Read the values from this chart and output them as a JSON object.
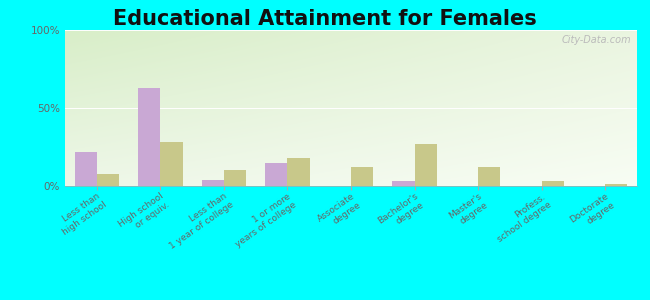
{
  "title": "Educational Attainment for Females",
  "categories": [
    "Less than\nhigh school",
    "High school\nor equiv.",
    "Less than\n1 year of college",
    "1 or more\nyears of college",
    "Associate\ndegree",
    "Bachelor's\ndegree",
    "Master's\ndegree",
    "Profess.\nschool degree",
    "Doctorate\ndegree"
  ],
  "akiak_values": [
    22,
    63,
    4,
    15,
    0,
    3,
    0,
    0,
    0
  ],
  "alaska_values": [
    8,
    28,
    10,
    18,
    12,
    27,
    12,
    3,
    1
  ],
  "akiak_color": "#c9a8d4",
  "alaska_color": "#c8c88a",
  "ylim": [
    0,
    100
  ],
  "yticks": [
    0,
    50,
    100
  ],
  "ytick_labels": [
    "0%",
    "50%",
    "100%"
  ],
  "bar_width": 0.35,
  "figure_bg": "#00ffff",
  "watermark": "City-Data.com",
  "title_fontsize": 15,
  "tick_fontsize": 6.5,
  "legend_fontsize": 9
}
